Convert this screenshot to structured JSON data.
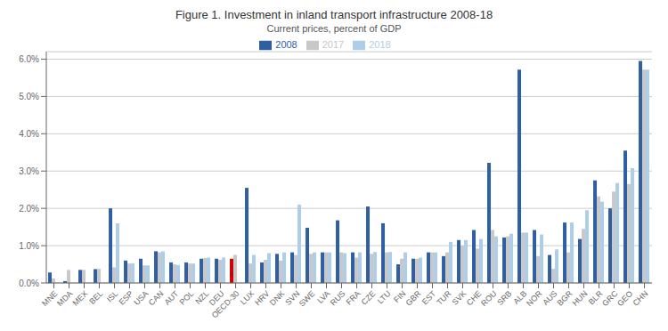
{
  "chart_data": {
    "type": "bar",
    "title": "Figure 1. Investment in inland transport infrastructure 2008-18",
    "subtitle": "Current prices, percent of GDP",
    "categories": [
      "MNE",
      "MDA",
      "MEX",
      "BEL",
      "ISL",
      "ESP",
      "USA",
      "CAN",
      "AUT",
      "POL",
      "NZL",
      "DEU",
      "OECD-30",
      "LUX",
      "HRV",
      "DNK",
      "SVN",
      "SWE",
      "LVA",
      "RUS",
      "FRA",
      "CZE",
      "LTU",
      "FIN",
      "GBR",
      "EST",
      "TUR",
      "SVK",
      "CHE",
      "ROU",
      "SRB",
      "ALB",
      "NOR",
      "AUS",
      "BGR",
      "HUN",
      "BLR",
      "GRC",
      "GEO",
      "CHN"
    ],
    "series": [
      {
        "name": "2008",
        "color": "#2e5fa3",
        "colors": [
          "#2e5fa3",
          "#2e5fa3",
          "#2e5fa3",
          "#2e5fa3",
          "#2e5fa3",
          "#2e5fa3",
          "#2e5fa3",
          "#2e5fa3",
          "#2e5fa3",
          "#2e5fa3",
          "#2e5fa3",
          "#2e5fa3",
          "#cc0000",
          "#2e5fa3",
          "#2e5fa3",
          "#2e5fa3",
          "#2e5fa3",
          "#2e5fa3",
          "#2e5fa3",
          "#2e5fa3",
          "#2e5fa3",
          "#2e5fa3",
          "#2e5fa3",
          "#2e5fa3",
          "#2e5fa3",
          "#2e5fa3",
          "#2e5fa3",
          "#2e5fa3",
          "#2e5fa3",
          "#2e5fa3",
          "#2e5fa3",
          "#2e5fa3",
          "#2e5fa3",
          "#2e5fa3",
          "#2e5fa3",
          "#2e5fa3",
          "#2e5fa3",
          "#2e5fa3",
          "#2e5fa3",
          "#2e5fa3"
        ],
        "values": [
          0.28,
          0.05,
          0.35,
          0.37,
          2.0,
          0.6,
          0.65,
          0.85,
          0.55,
          0.55,
          0.65,
          0.65,
          0.65,
          2.55,
          0.55,
          0.78,
          0.82,
          1.48,
          0.82,
          1.68,
          0.82,
          2.05,
          1.6,
          0.5,
          0.65,
          0.82,
          0.72,
          1.15,
          1.42,
          3.22,
          1.22,
          5.72,
          1.42,
          0.75,
          1.62,
          1.18,
          2.75,
          2.0,
          3.55,
          5.95
        ]
      },
      {
        "name": "2017",
        "color": "#c8c8c8",
        "values": [
          0.12,
          0.35,
          0.35,
          0.38,
          0.42,
          0.52,
          0.47,
          0.82,
          0.5,
          0.52,
          0.67,
          0.62,
          0.75,
          0.52,
          0.62,
          0.6,
          0.75,
          0.78,
          0.82,
          0.82,
          0.68,
          0.78,
          0.82,
          0.65,
          0.65,
          0.82,
          0.82,
          1.0,
          0.92,
          1.42,
          1.25,
          1.35,
          0.72,
          0.38,
          0.82,
          1.45,
          2.32,
          2.45,
          2.65,
          5.72
        ]
      },
      {
        "name": "2018",
        "color": "#aecde8",
        "values": [
          0.0,
          0.0,
          0.0,
          0.0,
          1.6,
          0.53,
          0.47,
          0.85,
          0.48,
          0.52,
          0.68,
          0.68,
          0.0,
          0.75,
          0.8,
          0.82,
          2.1,
          0.82,
          0.82,
          0.8,
          0.82,
          0.83,
          0.83,
          0.82,
          0.68,
          0.82,
          1.1,
          1.15,
          1.18,
          1.25,
          1.32,
          1.35,
          1.3,
          0.9,
          1.62,
          1.95,
          2.18,
          2.68,
          3.08,
          5.72
        ]
      }
    ],
    "ylim": [
      0,
      6.2
    ],
    "yticks": [
      {
        "value": 0,
        "label": "0.0%"
      },
      {
        "value": 1,
        "label": "1.0%"
      },
      {
        "value": 2,
        "label": "2.0%"
      },
      {
        "value": 3,
        "label": "3.0%"
      },
      {
        "value": 4,
        "label": "4.0%"
      },
      {
        "value": 5,
        "label": "5.0%"
      },
      {
        "value": 6,
        "label": "6.0%"
      }
    ],
    "grid": true,
    "legend": "top"
  }
}
